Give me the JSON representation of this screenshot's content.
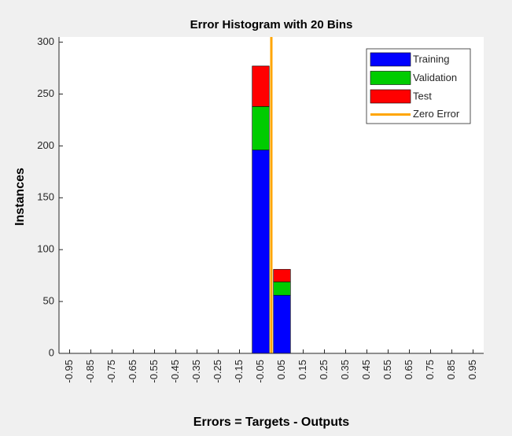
{
  "chart_data": {
    "type": "stacked_histogram",
    "title": "Error Histogram with 20 Bins",
    "xlabel": "Errors = Targets - Outputs",
    "ylabel": "Instances",
    "x": [
      -0.95,
      -0.85,
      -0.75,
      -0.65,
      -0.55,
      -0.45,
      -0.35,
      -0.25,
      -0.15,
      -0.05,
      0.05,
      0.15,
      0.25,
      0.35,
      0.45,
      0.55,
      0.65,
      0.75,
      0.85,
      0.95
    ],
    "series": [
      {
        "name": "Training",
        "color": "#0000ff",
        "values": [
          0,
          0,
          0,
          0,
          0,
          0,
          0,
          0,
          0,
          196,
          56,
          0,
          0,
          0,
          0,
          0,
          0,
          0,
          0,
          0
        ]
      },
      {
        "name": "Validation",
        "color": "#00cc00",
        "values": [
          0,
          0,
          0,
          0,
          0,
          0,
          0,
          0,
          0,
          42,
          13,
          0,
          0,
          0,
          0,
          0,
          0,
          0,
          0,
          0
        ]
      },
      {
        "name": "Test",
        "color": "#ff0000",
        "values": [
          0,
          0,
          0,
          0,
          0,
          0,
          0,
          0,
          0,
          39,
          12,
          0,
          0,
          0,
          0,
          0,
          0,
          0,
          0,
          0
        ]
      }
    ],
    "zero_line": {
      "name": "Zero Error",
      "color": "#ffa500",
      "x": 0
    },
    "xlim": [
      -1,
      1
    ],
    "xticks": [
      -0.95,
      -0.85,
      -0.75,
      -0.65,
      -0.55,
      -0.45,
      -0.35,
      -0.25,
      -0.15,
      -0.05,
      0.05,
      0.15,
      0.25,
      0.35,
      0.45,
      0.55,
      0.65,
      0.75,
      0.85,
      0.95
    ],
    "ylim": [
      0,
      305
    ],
    "yticks": [
      0,
      50,
      100,
      150,
      200,
      250,
      300
    ],
    "legend": "upper right"
  }
}
